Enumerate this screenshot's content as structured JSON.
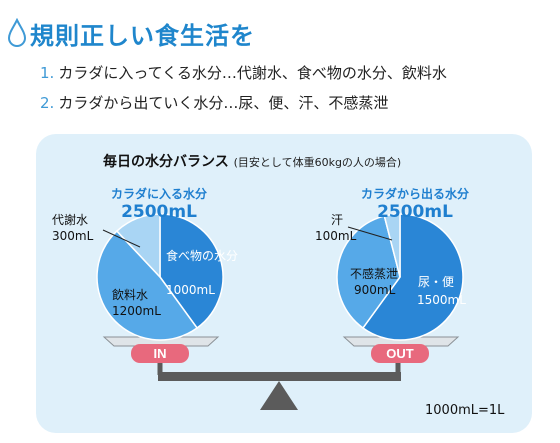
{
  "title": "規則正しい食生活を",
  "list": [
    {
      "num": "1.",
      "text": "カラダに入ってくる水分…代謝水、食べ物の水分、飲料水"
    },
    {
      "num": "2.",
      "text": "カラダから出ていく水分…尿、便、汗、不感蒸泄"
    }
  ],
  "panel": {
    "title": "毎日の水分バランス",
    "subtitle": "(目安として体重60kgの人の場合)"
  },
  "in_chart": {
    "heading": "カラダに入る水分",
    "total": "2500mL",
    "label": "IN",
    "slices": [
      {
        "name": "食べ物の水分",
        "value": "1000mL",
        "amount": 1000,
        "color": "#2a86d6"
      },
      {
        "name": "飲料水",
        "value": "1200mL",
        "amount": 1200,
        "color": "#56a9e8"
      },
      {
        "name": "代謝水",
        "value": "300mL",
        "amount": 300,
        "color": "#a9d5f4"
      }
    ]
  },
  "out_chart": {
    "heading": "カラダから出る水分",
    "total": "2500mL",
    "label": "OUT",
    "slices": [
      {
        "name": "尿・便",
        "value": "1500mL",
        "amount": 1500,
        "color": "#2a86d6"
      },
      {
        "name": "不感蒸泄",
        "value": "900mL",
        "amount": 900,
        "color": "#56a9e8"
      },
      {
        "name": "汗",
        "value": "100mL",
        "amount": 100,
        "color": "#a9d5f4"
      }
    ]
  },
  "colors": {
    "accent": "#1f86cc",
    "pan": "#e8697d",
    "scale": "#5b5b5b"
  },
  "note": "1000mL=1L"
}
